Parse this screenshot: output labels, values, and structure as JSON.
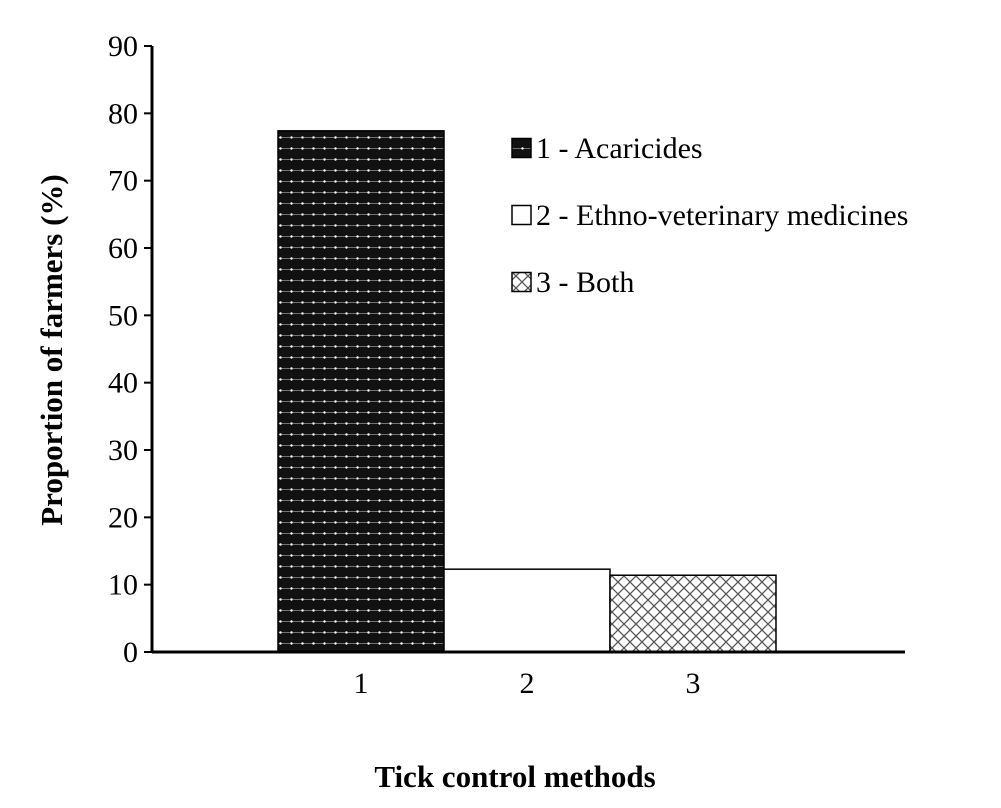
{
  "chart_data": {
    "type": "bar",
    "categories": [
      "1",
      "2",
      "3"
    ],
    "values": [
      77.4,
      12.3,
      11.4
    ],
    "xlabel": "Tick control methods",
    "ylabel": "Proportion of farmers (%)",
    "ylim": [
      0,
      90
    ],
    "yticks": [
      "0",
      "10",
      "20",
      "30",
      "40",
      "50",
      "60",
      "70",
      "80",
      "90"
    ],
    "grid": false,
    "legend_position": "top-right",
    "legend": [
      {
        "label": "1 - Acaricides",
        "pattern": "dark-dotted-grid"
      },
      {
        "label": "2 - Ethno-veterinary medicines",
        "pattern": "plain-white"
      },
      {
        "label": "3 - Both",
        "pattern": "crosshatch"
      }
    ],
    "colors": {
      "dark": "#111111",
      "white": "#ffffff",
      "hatch": "#555555"
    }
  }
}
